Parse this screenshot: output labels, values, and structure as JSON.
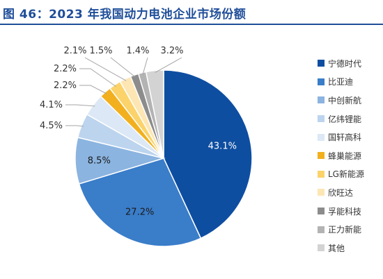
{
  "title": "图 46：2023 年我国动力电池企业市场份额",
  "colors": {
    "title": "#1f4e99"
  },
  "chart_data": {
    "type": "pie",
    "title": "",
    "start_angle_deg": 0,
    "direction": "clockwise",
    "legend_position": "right",
    "series": [
      {
        "categories": [
          "宁德时代",
          "比亚迪",
          "中创新航",
          "亿纬锂能",
          "国轩高科",
          "蜂巢能源",
          "LG新能源",
          "欣旺达",
          "孚能科技",
          "正力新能",
          "其他"
        ],
        "values": [
          43.1,
          27.2,
          8.5,
          4.5,
          4.1,
          2.2,
          2.2,
          2.1,
          1.5,
          1.4,
          3.2
        ],
        "labels": [
          "43.1%",
          "27.2%",
          "8.5%",
          "4.5%",
          "4.1%",
          "2.2%",
          "2.2%",
          "2.1%",
          "1.5%",
          "1.4%",
          "3.2%"
        ],
        "colors": [
          "#0e4ea1",
          "#3a7dc9",
          "#8bb4e0",
          "#bcd4ee",
          "#dce8f5",
          "#f2b01e",
          "#fbd36a",
          "#fde6b3",
          "#8c8c8c",
          "#b3b3b3",
          "#d3d3d3"
        ]
      }
    ]
  }
}
